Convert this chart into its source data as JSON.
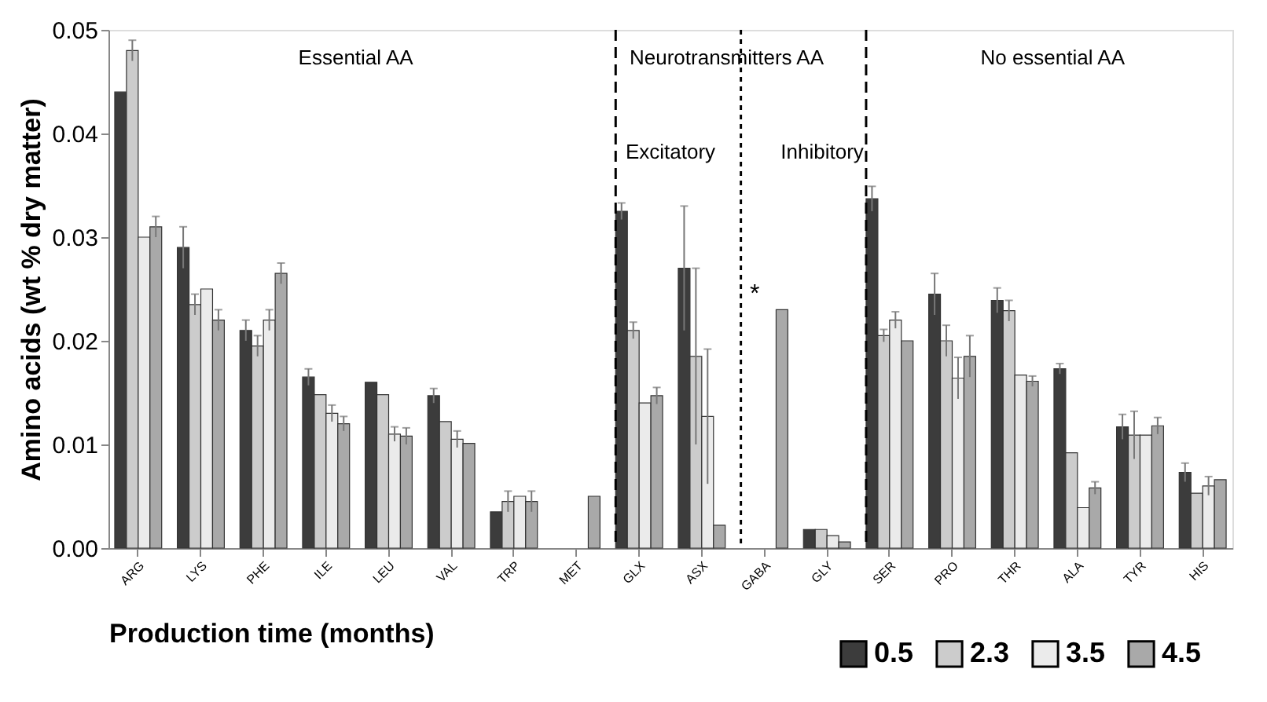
{
  "chart_data": {
    "type": "bar",
    "xlabel": "Production time (months)",
    "ylabel": "Amino acids (wt % dry matter)",
    "categories": [
      "ARG",
      "LYS",
      "PHE",
      "ILE",
      "LEU",
      "VAL",
      "TRP",
      "MET",
      "GLX",
      "ASX",
      "GABA",
      "GLY",
      "SER",
      "PRO",
      "THR",
      "ALA",
      "TYR",
      "HIS"
    ],
    "series": [
      {
        "name": "0.5",
        "color": "#3c3c3c",
        "values": [
          0.044,
          0.029,
          0.021,
          0.0165,
          0.016,
          0.0147,
          0.0035,
          null,
          0.0325,
          0.027,
          null,
          0.0018,
          0.0337,
          0.0245,
          0.0239,
          0.0173,
          0.0117,
          0.0073
        ],
        "errors": [
          null,
          0.002,
          0.001,
          0.0008,
          null,
          0.0007,
          null,
          null,
          0.0008,
          0.006,
          null,
          null,
          0.0012,
          0.002,
          0.0012,
          0.0005,
          0.0012,
          0.0009
        ]
      },
      {
        "name": "2.3",
        "color": "#cccccc",
        "values": [
          0.048,
          0.0235,
          0.0195,
          0.0148,
          0.0148,
          0.0122,
          0.0045,
          null,
          0.021,
          0.0185,
          null,
          0.0018,
          0.0205,
          0.02,
          0.0229,
          0.0092,
          0.0109,
          0.0053
        ],
        "errors": [
          0.001,
          0.001,
          0.001,
          null,
          null,
          null,
          0.001,
          null,
          0.0008,
          0.0085,
          null,
          null,
          0.0006,
          0.0015,
          0.001,
          null,
          0.0023,
          null
        ]
      },
      {
        "name": "3.5",
        "color": "#ebebeb",
        "values": [
          0.03,
          0.025,
          0.022,
          0.013,
          0.011,
          0.0105,
          0.005,
          null,
          0.014,
          0.0127,
          null,
          0.0012,
          0.022,
          0.0164,
          0.0167,
          0.0039,
          0.0109,
          0.006
        ],
        "errors": [
          null,
          null,
          0.001,
          0.0008,
          0.0007,
          0.0008,
          null,
          null,
          null,
          0.0065,
          null,
          null,
          0.0008,
          0.002,
          null,
          null,
          null,
          0.0009
        ]
      },
      {
        "name": "4.5",
        "color": "#a9a9a9",
        "values": [
          0.031,
          0.022,
          0.0265,
          0.012,
          0.0108,
          0.0101,
          0.0045,
          0.005,
          0.0147,
          0.0022,
          0.023,
          0.0006,
          0.02,
          0.0185,
          0.0161,
          0.0058,
          0.0118,
          0.0066
        ],
        "errors": [
          0.001,
          0.001,
          0.001,
          0.0007,
          0.0008,
          null,
          0.001,
          null,
          0.0008,
          null,
          null,
          null,
          null,
          0.002,
          0.0005,
          0.0006,
          0.0008,
          null
        ]
      }
    ],
    "ylim": [
      0,
      0.05
    ],
    "yticks": [
      {
        "value": 0,
        "label": "0.00"
      },
      {
        "value": 0.01,
        "label": "0.01"
      },
      {
        "value": 0.02,
        "label": "0.02"
      },
      {
        "value": 0.03,
        "label": "0.03"
      },
      {
        "value": 0.04,
        "label": "0.04"
      },
      {
        "value": 0.05,
        "label": "0.05"
      }
    ],
    "ref_lines": [
      {
        "axis": "x",
        "value": "GLX",
        "line_style": "dashed",
        "color": "#000000"
      },
      {
        "axis": "x",
        "value": "GABA",
        "line_style": "dotted",
        "color": "#000000"
      },
      {
        "axis": "x",
        "value": "SER",
        "line_style": "dashed",
        "color": "#000000"
      }
    ],
    "annotations": [
      "Essential AA",
      "Neurotransmitters AA",
      "Excitatory",
      "Inhibitory",
      "No essential AA",
      "*"
    ],
    "legend": "bottom right",
    "grid": false
  }
}
